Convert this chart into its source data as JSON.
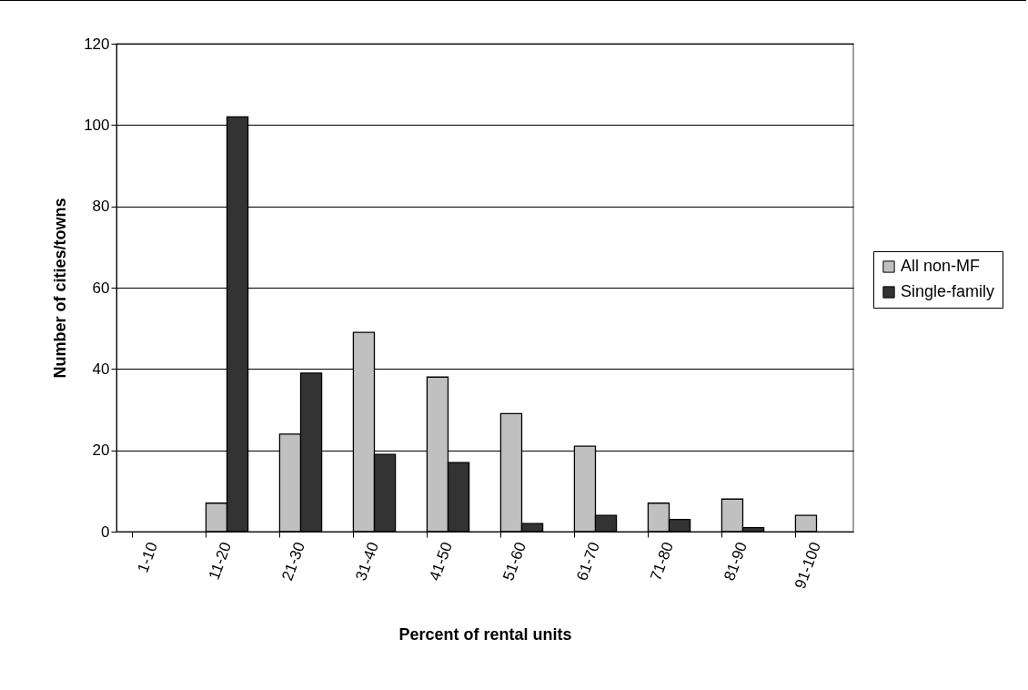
{
  "chart_data": {
    "type": "bar",
    "xlabel": "Percent of rental units",
    "ylabel": "Number of cities/towns",
    "categories": [
      "1-10",
      "11-20",
      "21-30",
      "31-40",
      "41-50",
      "51-60",
      "61-70",
      "71-80",
      "81-90",
      "91-100"
    ],
    "series": [
      {
        "name": "All non-MF",
        "color": "#c0c0c0",
        "values": [
          0,
          7,
          24,
          49,
          38,
          29,
          21,
          7,
          8,
          4
        ]
      },
      {
        "name": "Single-family",
        "color": "#333333",
        "values": [
          0,
          102,
          39,
          19,
          17,
          2,
          4,
          3,
          1,
          0
        ]
      }
    ],
    "ylim": [
      0,
      120
    ],
    "yticks": [
      0,
      20,
      40,
      60,
      80,
      100,
      120
    ],
    "grid": "y",
    "legend": "right"
  }
}
